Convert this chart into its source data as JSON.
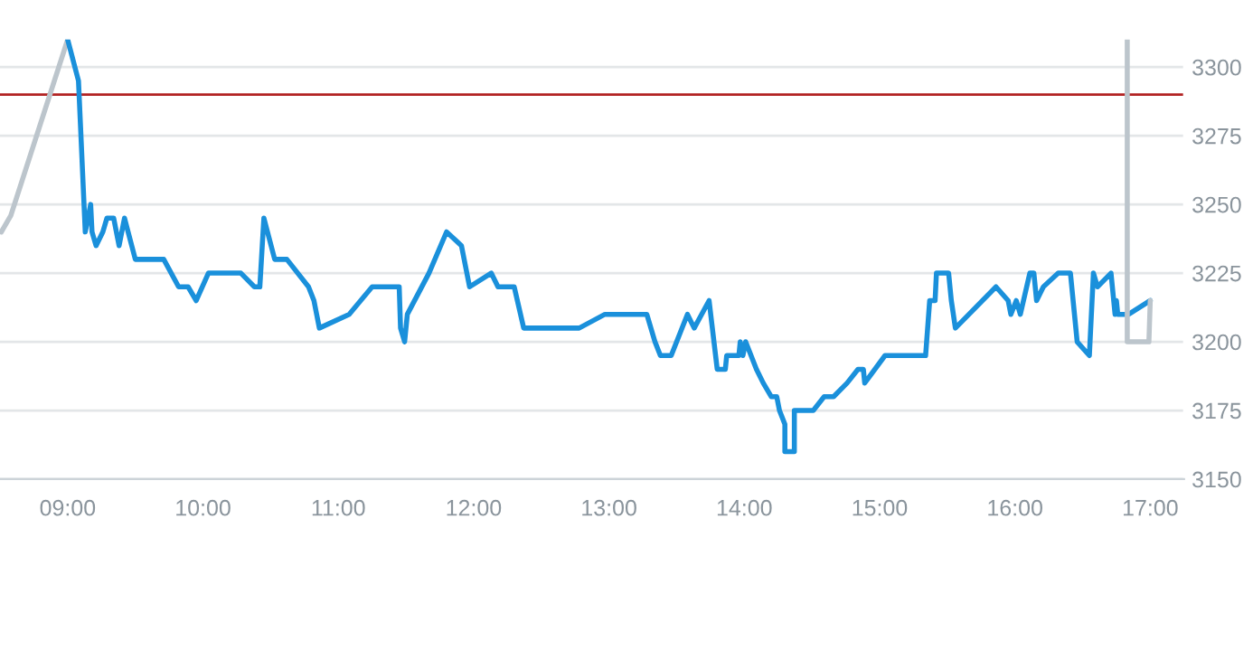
{
  "chart_data": {
    "type": "line",
    "series": [
      {
        "color": "#bcc5cc",
        "x": [
          8.51,
          8.58,
          9.0
        ],
        "values": [
          3240,
          3246,
          3310
        ]
      },
      {
        "color": "#1a90db",
        "x": [
          9.0,
          9.08,
          9.13,
          9.17,
          9.18,
          9.21,
          9.26,
          9.29,
          9.34,
          9.38,
          9.42,
          9.5,
          9.71,
          9.82,
          9.89,
          9.95,
          10.04,
          10.28,
          10.38,
          10.42,
          10.45,
          10.53,
          10.62,
          10.78,
          10.82,
          10.84,
          10.86,
          11.08,
          11.25,
          11.45,
          11.46,
          11.49,
          11.51,
          11.67,
          11.8,
          11.91,
          11.97,
          12.13,
          12.18,
          12.3,
          12.37,
          12.78,
          12.97,
          13.28,
          13.34,
          13.38,
          13.46,
          13.58,
          13.63,
          13.74,
          13.8,
          13.86,
          13.87,
          13.96,
          13.97,
          13.99,
          14.01,
          14.09,
          14.14,
          14.2,
          14.24,
          14.26,
          14.3,
          14.3,
          14.37,
          14.37,
          14.51,
          14.59,
          14.66,
          14.76,
          14.84,
          14.88,
          14.89,
          15.04,
          15.34,
          15.37,
          15.41,
          15.42,
          15.51,
          15.53,
          15.56,
          15.86,
          15.95,
          15.97,
          16.01,
          16.04,
          16.11,
          16.14,
          16.16,
          16.21,
          16.32,
          16.41,
          16.45,
          16.46,
          16.55,
          16.58,
          16.61,
          16.71,
          16.74,
          16.75,
          16.76,
          16.84,
          17.0
        ],
        "values": [
          3310,
          3295,
          3240,
          3250,
          3240,
          3235,
          3240,
          3245,
          3245,
          3235,
          3245,
          3230,
          3230,
          3220,
          3220,
          3215,
          3225,
          3225,
          3220,
          3220,
          3245,
          3230,
          3230,
          3220,
          3215,
          3210,
          3205,
          3210,
          3220,
          3220,
          3205,
          3200,
          3210,
          3225,
          3240,
          3235,
          3220,
          3225,
          3220,
          3220,
          3205,
          3205,
          3210,
          3210,
          3200,
          3195,
          3195,
          3210,
          3205,
          3215,
          3190,
          3190,
          3195,
          3195,
          3200,
          3195,
          3200,
          3190,
          3185,
          3180,
          3180,
          3175,
          3170,
          3160,
          3160,
          3175,
          3175,
          3180,
          3180,
          3185,
          3190,
          3190,
          3185,
          3195,
          3195,
          3215,
          3215,
          3225,
          3225,
          3215,
          3205,
          3220,
          3215,
          3210,
          3215,
          3210,
          3225,
          3225,
          3215,
          3220,
          3225,
          3225,
          3205,
          3200,
          3195,
          3225,
          3220,
          3225,
          3210,
          3215,
          3210,
          3210,
          3215
        ]
      },
      {
        "color": "#bcc5cc",
        "x": [
          16.83,
          16.83,
          16.99,
          17.0
        ],
        "values": [
          3310,
          3200,
          3200,
          3215
        ]
      }
    ],
    "xlim": [
      8.5,
      17.25
    ],
    "xticks": [
      {
        "value": 9,
        "label": "09:00"
      },
      {
        "value": 10,
        "label": "10:00"
      },
      {
        "value": 11,
        "label": "11:00"
      },
      {
        "value": 12,
        "label": "12:00"
      },
      {
        "value": 13,
        "label": "13:00"
      },
      {
        "value": 14,
        "label": "14:00"
      },
      {
        "value": 15,
        "label": "15:00"
      },
      {
        "value": 16,
        "label": "16:00"
      },
      {
        "value": 17,
        "label": "17:00"
      }
    ],
    "ylim": [
      3150,
      3310
    ],
    "yticks": [
      3150,
      3175,
      3200,
      3225,
      3250,
      3275,
      3300
    ],
    "ref_lines": [
      {
        "axis": "y",
        "value": 3290,
        "color": "#b22222"
      }
    ],
    "grid": "y",
    "legend": false,
    "marker": "none",
    "line_style": "solid"
  }
}
